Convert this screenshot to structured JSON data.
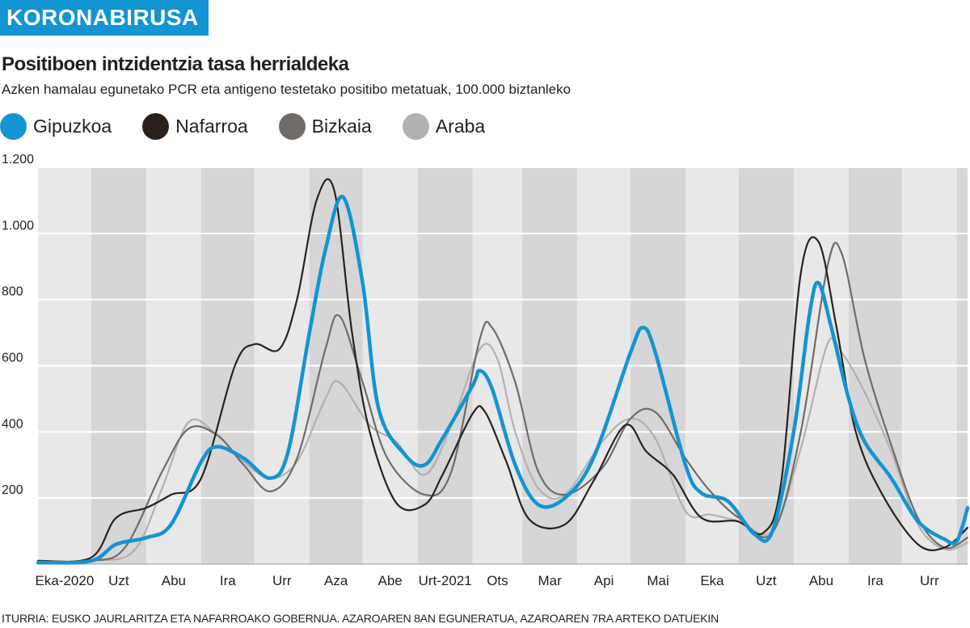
{
  "header": {
    "kicker": "KORONABIRUSA",
    "title": "Positiboen intzidentzia tasa herrialdeka",
    "subtitle": "Azken hamalau egunetako PCR eta antigeno testetako positibo metatuak, 100.000 biztanleko"
  },
  "source": "ITURRIA: EUSKO JAURLARITZA ETA NAFARROAKO GOBERNUA. AZAROAREN 8AN EGUNERATUA, AZAROAREN 7RA ARTEKO DATUEKIN",
  "chart_data": {
    "type": "line",
    "x_unit": "month",
    "months": [
      "2020-06",
      "2020-07",
      "2020-08",
      "2020-09",
      "2020-10",
      "2020-11",
      "2020-12",
      "2021-01",
      "2021-02",
      "2021-03",
      "2021-04",
      "2021-05",
      "2021-06",
      "2021-07",
      "2021-08",
      "2021-09",
      "2021-10",
      "2021-11"
    ],
    "month_labels": [
      "Eka-2020",
      "Uzt",
      "Abu",
      "Ira",
      "Urr",
      "Aza",
      "Abe",
      "Urt-2021",
      "Ots",
      "Mar",
      "Api",
      "Mai",
      "Eka",
      "Uzt",
      "Abu",
      "Ira",
      "Urr",
      ""
    ],
    "shaded_months": [
      "2020-07",
      "2020-09",
      "2020-11",
      "2021-01",
      "2021-03",
      "2021-05",
      "2021-07",
      "2021-09",
      "2021-11"
    ],
    "x_range": [
      "2020-06-01",
      "2021-11-07"
    ],
    "ylim": [
      0,
      1200
    ],
    "y_ticks": [
      200,
      400,
      600,
      800,
      1000,
      1200
    ],
    "y_tick_labels": [
      "200",
      "400",
      "600",
      "800",
      "1.000",
      "1.200"
    ],
    "grid": true,
    "legend_position": "top-left",
    "series": [
      {
        "name": "Gipuzkoa",
        "color": "#1394d3",
        "points": [
          [
            "2020-06-01",
            5
          ],
          [
            "2020-07-01",
            10
          ],
          [
            "2020-07-15",
            60
          ],
          [
            "2020-08-01",
            80
          ],
          [
            "2020-08-15",
            120
          ],
          [
            "2020-09-01",
            310
          ],
          [
            "2020-09-10",
            355
          ],
          [
            "2020-09-25",
            320
          ],
          [
            "2020-10-10",
            260
          ],
          [
            "2020-10-20",
            340
          ],
          [
            "2020-11-01",
            700
          ],
          [
            "2020-11-10",
            950
          ],
          [
            "2020-11-20",
            1110
          ],
          [
            "2020-12-01",
            850
          ],
          [
            "2020-12-10",
            470
          ],
          [
            "2020-12-25",
            330
          ],
          [
            "2021-01-05",
            300
          ],
          [
            "2021-01-15",
            380
          ],
          [
            "2021-02-01",
            540
          ],
          [
            "2021-02-05",
            585
          ],
          [
            "2021-02-12",
            530
          ],
          [
            "2021-02-25",
            300
          ],
          [
            "2021-03-10",
            180
          ],
          [
            "2021-03-25",
            200
          ],
          [
            "2021-04-10",
            320
          ],
          [
            "2021-05-01",
            640
          ],
          [
            "2021-05-08",
            715
          ],
          [
            "2021-05-15",
            640
          ],
          [
            "2021-06-01",
            300
          ],
          [
            "2021-06-10",
            215
          ],
          [
            "2021-06-25",
            190
          ],
          [
            "2021-07-10",
            90
          ],
          [
            "2021-07-20",
            100
          ],
          [
            "2021-08-01",
            400
          ],
          [
            "2021-08-10",
            760
          ],
          [
            "2021-08-15",
            850
          ],
          [
            "2021-08-22",
            720
          ],
          [
            "2021-09-01",
            500
          ],
          [
            "2021-09-10",
            370
          ],
          [
            "2021-09-25",
            260
          ],
          [
            "2021-10-10",
            130
          ],
          [
            "2021-10-25",
            75
          ],
          [
            "2021-11-01",
            70
          ],
          [
            "2021-11-07",
            170
          ]
        ]
      },
      {
        "name": "Nafarroa",
        "color": "#2a211d",
        "points": [
          [
            "2020-06-01",
            10
          ],
          [
            "2020-07-01",
            20
          ],
          [
            "2020-07-15",
            140
          ],
          [
            "2020-08-01",
            170
          ],
          [
            "2020-08-15",
            210
          ],
          [
            "2020-09-01",
            260
          ],
          [
            "2020-09-20",
            600
          ],
          [
            "2020-10-01",
            665
          ],
          [
            "2020-10-15",
            650
          ],
          [
            "2020-10-25",
            800
          ],
          [
            "2020-11-05",
            1100
          ],
          [
            "2020-11-15",
            1130
          ],
          [
            "2020-11-25",
            700
          ],
          [
            "2020-12-05",
            400
          ],
          [
            "2020-12-20",
            185
          ],
          [
            "2021-01-05",
            180
          ],
          [
            "2021-01-15",
            270
          ],
          [
            "2021-02-01",
            455
          ],
          [
            "2021-02-08",
            460
          ],
          [
            "2021-02-20",
            310
          ],
          [
            "2021-03-05",
            135
          ],
          [
            "2021-03-25",
            120
          ],
          [
            "2021-04-10",
            250
          ],
          [
            "2021-04-28",
            420
          ],
          [
            "2021-05-10",
            340
          ],
          [
            "2021-05-25",
            270
          ],
          [
            "2021-06-10",
            140
          ],
          [
            "2021-06-30",
            130
          ],
          [
            "2021-07-15",
            95
          ],
          [
            "2021-07-25",
            250
          ],
          [
            "2021-08-05",
            880
          ],
          [
            "2021-08-15",
            975
          ],
          [
            "2021-08-25",
            720
          ],
          [
            "2021-09-05",
            400
          ],
          [
            "2021-09-20",
            210
          ],
          [
            "2021-10-10",
            60
          ],
          [
            "2021-10-25",
            50
          ],
          [
            "2021-11-07",
            110
          ]
        ]
      },
      {
        "name": "Bizkaia",
        "color": "#706b67",
        "points": [
          [
            "2020-06-01",
            5
          ],
          [
            "2020-07-01",
            10
          ],
          [
            "2020-07-20",
            50
          ],
          [
            "2020-08-10",
            280
          ],
          [
            "2020-08-25",
            410
          ],
          [
            "2020-09-10",
            390
          ],
          [
            "2020-09-25",
            300
          ],
          [
            "2020-10-10",
            220
          ],
          [
            "2020-10-25",
            320
          ],
          [
            "2020-11-10",
            650
          ],
          [
            "2020-11-18",
            750
          ],
          [
            "2020-12-01",
            550
          ],
          [
            "2020-12-15",
            320
          ],
          [
            "2021-01-05",
            210
          ],
          [
            "2021-01-20",
            280
          ],
          [
            "2021-02-05",
            680
          ],
          [
            "2021-02-12",
            715
          ],
          [
            "2021-02-25",
            550
          ],
          [
            "2021-03-10",
            280
          ],
          [
            "2021-03-25",
            210
          ],
          [
            "2021-04-15",
            290
          ],
          [
            "2021-05-01",
            440
          ],
          [
            "2021-05-15",
            460
          ],
          [
            "2021-06-01",
            320
          ],
          [
            "2021-06-15",
            220
          ],
          [
            "2021-07-01",
            140
          ],
          [
            "2021-07-20",
            95
          ],
          [
            "2021-08-05",
            400
          ],
          [
            "2021-08-20",
            900
          ],
          [
            "2021-08-28",
            940
          ],
          [
            "2021-09-10",
            620
          ],
          [
            "2021-09-25",
            360
          ],
          [
            "2021-10-10",
            140
          ],
          [
            "2021-10-25",
            50
          ],
          [
            "2021-11-07",
            80
          ]
        ]
      },
      {
        "name": "Araba",
        "color": "#b3b1b0",
        "points": [
          [
            "2020-06-01",
            5
          ],
          [
            "2020-07-01",
            10
          ],
          [
            "2020-07-25",
            40
          ],
          [
            "2020-08-10",
            230
          ],
          [
            "2020-08-25",
            430
          ],
          [
            "2020-09-10",
            390
          ],
          [
            "2020-09-25",
            310
          ],
          [
            "2020-10-10",
            260
          ],
          [
            "2020-10-25",
            310
          ],
          [
            "2020-11-10",
            500
          ],
          [
            "2020-11-18",
            550
          ],
          [
            "2020-12-05",
            420
          ],
          [
            "2020-12-20",
            370
          ],
          [
            "2021-01-05",
            270
          ],
          [
            "2021-01-20",
            420
          ],
          [
            "2021-02-05",
            650
          ],
          [
            "2021-02-15",
            620
          ],
          [
            "2021-02-25",
            400
          ],
          [
            "2021-03-10",
            230
          ],
          [
            "2021-03-25",
            210
          ],
          [
            "2021-04-15",
            370
          ],
          [
            "2021-05-01",
            440
          ],
          [
            "2021-05-15",
            380
          ],
          [
            "2021-06-01",
            160
          ],
          [
            "2021-06-15",
            150
          ],
          [
            "2021-07-01",
            130
          ],
          [
            "2021-07-20",
            100
          ],
          [
            "2021-08-05",
            350
          ],
          [
            "2021-08-20",
            665
          ],
          [
            "2021-08-28",
            640
          ],
          [
            "2021-09-10",
            520
          ],
          [
            "2021-09-25",
            340
          ],
          [
            "2021-10-10",
            120
          ],
          [
            "2021-10-25",
            45
          ],
          [
            "2021-11-07",
            65
          ]
        ]
      }
    ]
  }
}
